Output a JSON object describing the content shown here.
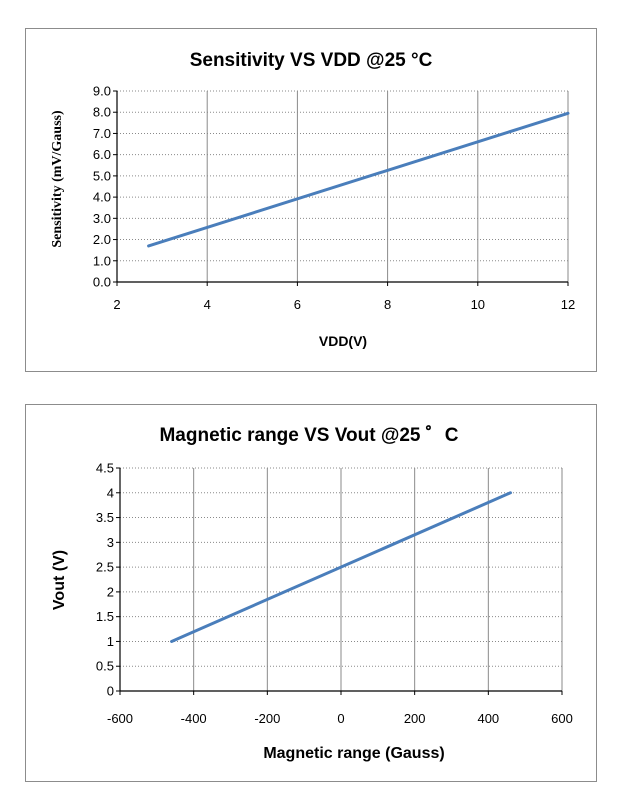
{
  "chart_data": [
    {
      "type": "line",
      "title": "Sensitivity VS  VDD @25 °C",
      "xlabel": "VDD(V)",
      "ylabel": "Sensitivity (mV/Gauss)",
      "xlim": [
        2,
        12
      ],
      "ylim": [
        0,
        9
      ],
      "xticks": [
        "2",
        "4",
        "6",
        "8",
        "10",
        "12"
      ],
      "yticks": [
        "0.0",
        "1.0",
        "2.0",
        "3.0",
        "4.0",
        "5.0",
        "6.0",
        "7.0",
        "8.0",
        "9.0"
      ],
      "grid": {
        "vertical": "solid",
        "horizontal": "dotted"
      },
      "line_color": "#4a7ebb",
      "series": [
        {
          "x": [
            2.7,
            12
          ],
          "y": [
            1.7,
            7.95
          ]
        }
      ]
    },
    {
      "type": "line",
      "title": "Magnetic range VS Vout @25 ゜C",
      "xlabel": "Magnetic range (Gauss)",
      "ylabel": "Vout (V)",
      "xlim": [
        -600,
        600
      ],
      "ylim": [
        0,
        4.5
      ],
      "xticks": [
        "-600",
        "-400",
        "-200",
        "0",
        "200",
        "400",
        "600"
      ],
      "yticks": [
        "0",
        "0.5",
        "1",
        "1.5",
        "2",
        "2.5",
        "3",
        "3.5",
        "4",
        "4.5"
      ],
      "grid": {
        "vertical": "solid",
        "horizontal": "dotted"
      },
      "line_color": "#4a7ebb",
      "series": [
        {
          "x": [
            -460,
            460
          ],
          "y": [
            1.0,
            4.0
          ]
        }
      ]
    }
  ]
}
